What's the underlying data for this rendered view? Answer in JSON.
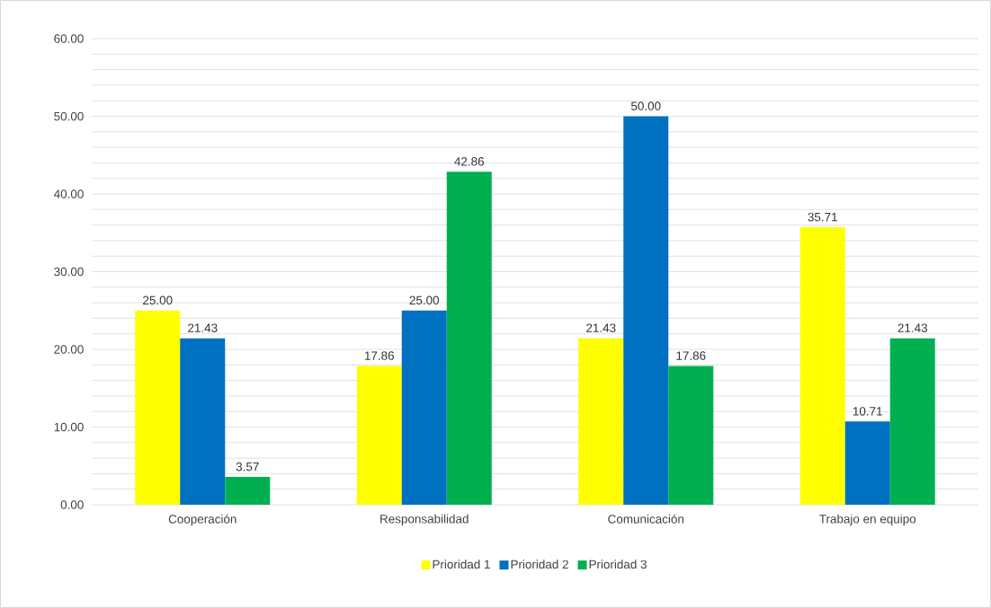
{
  "chart_data": {
    "type": "bar",
    "categories": [
      "Cooperación",
      "Responsabilidad",
      "Comunicación",
      "Trabajo en equipo"
    ],
    "series": [
      {
        "name": "Prioridad 1",
        "color": "#ffff00",
        "values": [
          25.0,
          17.86,
          21.43,
          35.71
        ],
        "value_labels": [
          "25.00",
          "17.86",
          "21.43",
          "35.71"
        ]
      },
      {
        "name": "Prioridad 2",
        "color": "#0070c0",
        "values": [
          21.43,
          25.0,
          50.0,
          10.71
        ],
        "value_labels": [
          "21.43",
          "25.00",
          "50.00",
          "10.71"
        ]
      },
      {
        "name": "Prioridad 3",
        "color": "#00b050",
        "values": [
          3.57,
          42.86,
          17.86,
          21.43
        ],
        "value_labels": [
          "3.57",
          "42.86",
          "17.86",
          "21.43"
        ]
      }
    ],
    "ylim": [
      0,
      60
    ],
    "yticks": [
      {
        "value": 0,
        "label": "0.00"
      },
      {
        "value": 2,
        "label": null
      },
      {
        "value": 4,
        "label": null
      },
      {
        "value": 6,
        "label": null
      },
      {
        "value": 8,
        "label": null
      },
      {
        "value": 10,
        "label": "10.00"
      },
      {
        "value": 12,
        "label": null
      },
      {
        "value": 14,
        "label": null
      },
      {
        "value": 16,
        "label": null
      },
      {
        "value": 18,
        "label": null
      },
      {
        "value": 20,
        "label": "20.00"
      },
      {
        "value": 22,
        "label": null
      },
      {
        "value": 24,
        "label": null
      },
      {
        "value": 26,
        "label": null
      },
      {
        "value": 28,
        "label": null
      },
      {
        "value": 30,
        "label": "30.00"
      },
      {
        "value": 32,
        "label": null
      },
      {
        "value": 34,
        "label": null
      },
      {
        "value": 36,
        "label": null
      },
      {
        "value": 38,
        "label": null
      },
      {
        "value": 40,
        "label": "40.00"
      },
      {
        "value": 42,
        "label": null
      },
      {
        "value": 44,
        "label": null
      },
      {
        "value": 46,
        "label": null
      },
      {
        "value": 48,
        "label": null
      },
      {
        "value": 50,
        "label": "50.00"
      },
      {
        "value": 52,
        "label": null
      },
      {
        "value": 54,
        "label": null
      },
      {
        "value": 56,
        "label": null
      },
      {
        "value": 58,
        "label": null
      },
      {
        "value": 60,
        "label": "60.00"
      }
    ],
    "grid": "y",
    "legend": "bottom"
  }
}
